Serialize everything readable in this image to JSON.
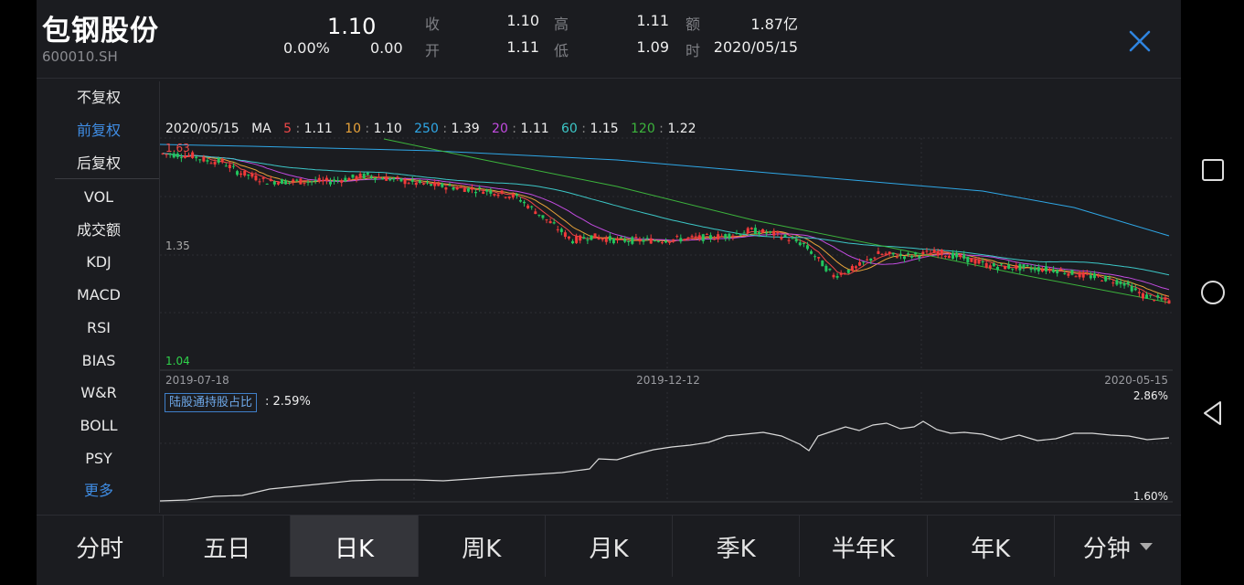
{
  "header": {
    "name": "包钢股份",
    "code": "600010.SH",
    "price": "1.10",
    "change_pct": "0.00%",
    "change": "0.00",
    "quotes": [
      {
        "label": "收",
        "value": "1.10"
      },
      {
        "label": "开",
        "value": "1.11"
      },
      {
        "label": "高",
        "value": "1.11"
      },
      {
        "label": "低",
        "value": "1.09"
      },
      {
        "label": "额",
        "value": "1.87亿"
      },
      {
        "label": "时",
        "value": "2020/05/15"
      }
    ]
  },
  "menu": {
    "items": [
      "不复权",
      "前复权",
      "后复权",
      "VOL",
      "成交额",
      "KDJ",
      "MACD",
      "RSI",
      "BIAS",
      "W&R",
      "BOLL",
      "PSY",
      "更多"
    ],
    "active": "前复权"
  },
  "legend": {
    "date": "2020/05/15",
    "ma_label": "MA",
    "items": [
      {
        "period": "5",
        "value": "1.11",
        "color": "#f04848"
      },
      {
        "period": "10",
        "value": "1.10",
        "color": "#e8a33a"
      },
      {
        "period": "250",
        "value": "1.39",
        "color": "#2fa7e6"
      },
      {
        "period": "20",
        "value": "1.11",
        "color": "#c24be0"
      },
      {
        "period": "60",
        "value": "1.15",
        "color": "#3cc7c7"
      },
      {
        "period": "120",
        "value": "1.22",
        "color": "#3cb43c"
      }
    ]
  },
  "chart_data": {
    "type": "candlestick",
    "y_labels": {
      "top": "1.63",
      "mid": "1.35",
      "bottom": "1.04"
    },
    "x_labels": [
      "2019-07-18",
      "2019-12-12",
      "2020-05-15"
    ],
    "ylim": [
      1.04,
      1.63
    ],
    "up_color": "#f23a3a",
    "down_color": "#22c55e"
  },
  "holding": {
    "label": "陆股通持股占比",
    "value": ": 2.59%",
    "max": "2.86%",
    "min": "1.60%",
    "line_color": "#d9d9d9"
  },
  "tabs": [
    "分时",
    "五日",
    "日K",
    "周K",
    "月K",
    "季K",
    "半年K",
    "年K",
    "分钟"
  ],
  "active_tab": "日K"
}
